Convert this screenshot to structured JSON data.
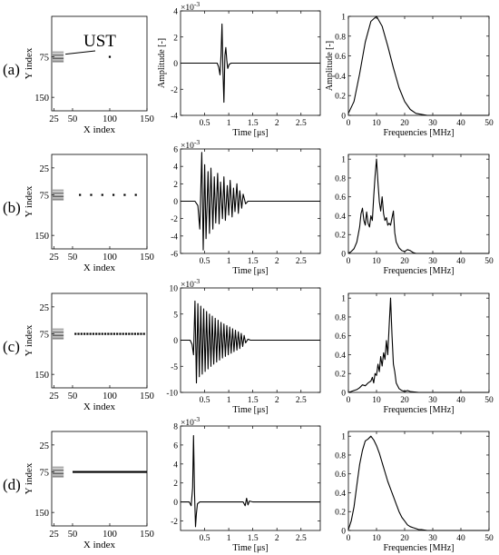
{
  "rows": [
    {
      "label": "(a)",
      "panel_type": "setup",
      "setup": {
        "x_ticks": [
          "25",
          "50",
          "100",
          "150"
        ],
        "y_ticks": [
          "75",
          "150"
        ],
        "xlabel": "X index",
        "ylabel": "Y index",
        "scatterers": [
          [
            100,
            75
          ]
        ],
        "continuous_line": false,
        "ust_label": "UST"
      },
      "time": {
        "exponent": "×10",
        "exponent_power": "-3",
        "ylabel": "Amplitude [-]",
        "xlabel": "Time [μs]",
        "x_ticks": [
          "0.5",
          "1",
          "1.5",
          "2",
          "2.5"
        ],
        "y_ticks": [
          "4",
          "2",
          "0",
          "-2",
          "-4"
        ]
      },
      "freq": {
        "ylabel": "Amplitude [-]",
        "xlabel": "Frequencies [MHz]",
        "x_ticks": [
          "0",
          "10",
          "20",
          "30",
          "40",
          "50"
        ],
        "y_ticks": [
          "1",
          "0.8",
          "0.6",
          "0.4",
          "0.2",
          "0"
        ]
      }
    },
    {
      "label": "(b)",
      "panel_type": "setup",
      "setup": {
        "x_ticks": [
          "25",
          "50",
          "100",
          "150"
        ],
        "y_ticks": [
          "25",
          "75",
          "150"
        ],
        "xlabel": "X index",
        "ylabel": "Y index",
        "scatterers": [
          [
            60,
            75
          ],
          [
            75,
            75
          ],
          [
            90,
            75
          ],
          [
            105,
            75
          ],
          [
            120,
            75
          ],
          [
            135,
            75
          ]
        ],
        "continuous_line": false
      },
      "time": {
        "exponent": "×10",
        "exponent_power": "-3",
        "ylabel": "",
        "xlabel": "Time [μs]",
        "x_ticks": [
          "0.5",
          "1",
          "1.5",
          "2",
          "2.5"
        ],
        "y_ticks": [
          "6",
          "4",
          "2",
          "0",
          "-2",
          "-4",
          "-6"
        ]
      },
      "freq": {
        "ylabel": "",
        "xlabel": "Frequencies [MHz]",
        "x_ticks": [
          "0",
          "10",
          "20",
          "30",
          "40",
          "50"
        ],
        "y_ticks": [
          "1",
          "0.8",
          "0.6",
          "0.4",
          "0.2",
          "0"
        ]
      }
    },
    {
      "label": "(c)",
      "panel_type": "setup",
      "setup": {
        "x_ticks": [
          "25",
          "50",
          "100",
          "150"
        ],
        "y_ticks": [
          "25",
          "75",
          "150"
        ],
        "xlabel": "X index",
        "ylabel": "Y index",
        "scatterers": [
          [
            54,
            75
          ],
          [
            58,
            75
          ],
          [
            62,
            75
          ],
          [
            66,
            75
          ],
          [
            70,
            75
          ],
          [
            74,
            75
          ],
          [
            78,
            75
          ],
          [
            82,
            75
          ],
          [
            86,
            75
          ],
          [
            90,
            75
          ],
          [
            94,
            75
          ],
          [
            98,
            75
          ],
          [
            102,
            75
          ],
          [
            106,
            75
          ],
          [
            110,
            75
          ],
          [
            114,
            75
          ],
          [
            118,
            75
          ],
          [
            122,
            75
          ],
          [
            126,
            75
          ],
          [
            130,
            75
          ],
          [
            134,
            75
          ],
          [
            138,
            75
          ],
          [
            142,
            75
          ],
          [
            146,
            75
          ]
        ],
        "continuous_line": false
      },
      "time": {
        "exponent": "×10",
        "exponent_power": "-3",
        "ylabel": "",
        "xlabel": "Time [μs]",
        "x_ticks": [
          "0.5",
          "1",
          "1.5",
          "2",
          "2.5"
        ],
        "y_ticks": [
          "10",
          "5",
          "0",
          "-5",
          "-10"
        ]
      },
      "freq": {
        "ylabel": "",
        "xlabel": "Frequencies [MHz]",
        "x_ticks": [
          "0",
          "10",
          "20",
          "30",
          "40",
          "50"
        ],
        "y_ticks": [
          "1",
          "0.8",
          "0.6",
          "0.4",
          "0.2",
          "0"
        ]
      }
    },
    {
      "label": "(d)",
      "panel_type": "setup",
      "setup": {
        "x_ticks": [
          "25",
          "50",
          "100",
          "150"
        ],
        "y_ticks": [
          "25",
          "75",
          "150"
        ],
        "xlabel": "X index",
        "ylabel": "Y index",
        "scatterers": [],
        "continuous_line": true
      },
      "time": {
        "exponent": "×10",
        "exponent_power": "-3",
        "ylabel": "",
        "xlabel": "Time [μs]",
        "x_ticks": [
          "0.5",
          "1",
          "1.5",
          "2",
          "2.5"
        ],
        "y_ticks": [
          "8",
          "6",
          "4",
          "2",
          "0",
          "-2"
        ]
      },
      "freq": {
        "ylabel": "",
        "xlabel": "Frequencies [MHz]",
        "x_ticks": [
          "0",
          "10",
          "20",
          "30",
          "40",
          "50"
        ],
        "y_ticks": [
          "1",
          "0.8",
          "0.6",
          "0.4",
          "0.2",
          "0"
        ]
      }
    }
  ],
  "chart_data": [
    {
      "type": "line",
      "row": "(a)",
      "xlabel": "Time [μs]",
      "ylabel": "Amplitude [-]",
      "xlim": [
        0,
        2.9
      ],
      "ylim": [
        -4,
        4
      ],
      "y_multiplier": "×10^-3",
      "x": [
        0.0,
        0.7,
        0.76,
        0.79,
        0.82,
        0.84,
        0.86,
        0.88,
        0.9,
        0.92,
        0.94,
        0.96,
        0.98,
        1.01,
        1.05,
        1.2,
        2.9
      ],
      "y": [
        0,
        0,
        0,
        -0.3,
        -0.9,
        0.6,
        3.0,
        -0.5,
        -3.0,
        0.6,
        1.2,
        0.2,
        -0.4,
        -0.1,
        0,
        0,
        0
      ]
    },
    {
      "type": "line",
      "row": "(a)",
      "xlabel": "Frequencies [MHz]",
      "ylabel": "Amplitude [-]",
      "xlim": [
        0,
        50
      ],
      "ylim": [
        0,
        1
      ],
      "x": [
        0,
        2,
        4,
        6,
        8,
        10,
        12,
        14,
        16,
        18,
        20,
        22,
        24,
        26,
        28,
        30,
        40,
        50
      ],
      "y": [
        0.02,
        0.14,
        0.42,
        0.74,
        0.95,
        1.0,
        0.9,
        0.7,
        0.48,
        0.28,
        0.14,
        0.06,
        0.02,
        0.01,
        0,
        0,
        0,
        0
      ]
    },
    {
      "type": "line",
      "row": "(b)",
      "xlabel": "Time [μs]",
      "xlim": [
        0,
        2.9
      ],
      "ylim": [
        -6,
        6
      ],
      "y_multiplier": "×10^-3",
      "x": [
        0.0,
        0.3,
        0.36,
        0.4,
        0.44,
        0.47,
        0.5,
        0.53,
        0.57,
        0.6,
        0.63,
        0.67,
        0.7,
        0.73,
        0.77,
        0.8,
        0.83,
        0.87,
        0.9,
        0.93,
        0.97,
        1.0,
        1.03,
        1.07,
        1.1,
        1.13,
        1.17,
        1.2,
        1.23,
        1.27,
        1.3,
        1.35,
        1.4,
        2.9
      ],
      "y": [
        0,
        0,
        -0.5,
        -3.2,
        5.6,
        -5.6,
        4.2,
        -4.3,
        3.4,
        -3.7,
        3.8,
        -3.2,
        2.8,
        -2.5,
        3.2,
        -2.6,
        2.2,
        -2.0,
        2.8,
        -2.2,
        1.8,
        -1.6,
        2.4,
        -1.8,
        1.5,
        -1.2,
        2.0,
        -1.4,
        1.2,
        -0.8,
        0.8,
        -0.3,
        0,
        0
      ]
    },
    {
      "type": "line",
      "row": "(b)",
      "xlabel": "Frequencies [MHz]",
      "xlim": [
        0,
        50
      ],
      "ylim": [
        0,
        1.05
      ],
      "x": [
        0,
        1,
        2,
        3,
        4,
        4.5,
        5,
        5.5,
        6,
        6.5,
        7,
        7.5,
        8,
        8.5,
        9,
        9.5,
        10,
        10.5,
        11,
        11.5,
        12,
        12.5,
        13,
        13.5,
        14,
        14.5,
        15,
        15.5,
        16,
        16.5,
        17,
        18,
        19,
        20,
        21,
        22,
        23,
        24,
        25,
        30,
        40,
        50
      ],
      "y": [
        0,
        0.02,
        0.05,
        0.12,
        0.28,
        0.42,
        0.48,
        0.35,
        0.3,
        0.44,
        0.32,
        0.28,
        0.4,
        0.35,
        0.6,
        0.82,
        1.0,
        0.75,
        0.55,
        0.45,
        0.6,
        0.42,
        0.35,
        0.38,
        0.3,
        0.32,
        0.3,
        0.38,
        0.45,
        0.22,
        0.12,
        0.06,
        0.03,
        0.02,
        0.04,
        0.03,
        0.01,
        0,
        0,
        0,
        0,
        0
      ]
    },
    {
      "type": "line",
      "row": "(c)",
      "xlabel": "Time [μs]",
      "xlim": [
        0,
        2.9
      ],
      "ylim": [
        -10,
        10
      ],
      "y_multiplier": "×10^-3",
      "x": [
        0.0,
        0.2,
        0.24,
        0.27,
        0.3,
        0.33,
        0.36,
        0.39,
        0.42,
        0.45,
        0.48,
        0.51,
        0.54,
        0.57,
        0.6,
        0.63,
        0.66,
        0.69,
        0.72,
        0.75,
        0.78,
        0.81,
        0.84,
        0.87,
        0.9,
        0.93,
        0.96,
        0.99,
        1.02,
        1.05,
        1.08,
        1.11,
        1.14,
        1.17,
        1.2,
        1.23,
        1.26,
        1.29,
        1.32,
        1.35,
        1.4,
        1.45,
        2.9
      ],
      "y": [
        0,
        0,
        -0.8,
        -2.8,
        7.5,
        -8.2,
        7.0,
        -7.0,
        6.5,
        -6.5,
        6.0,
        -6.0,
        5.5,
        -5.5,
        5.0,
        -5.0,
        4.6,
        -4.6,
        4.2,
        -4.2,
        3.8,
        -3.8,
        3.4,
        -3.4,
        3.1,
        -3.1,
        2.8,
        -2.8,
        2.5,
        -2.5,
        2.2,
        -2.2,
        1.9,
        -1.9,
        1.6,
        -1.6,
        1.3,
        -1.2,
        0.9,
        -0.5,
        0.2,
        0,
        0
      ]
    },
    {
      "type": "line",
      "row": "(c)",
      "xlabel": "Frequencies [MHz]",
      "xlim": [
        0,
        50
      ],
      "ylim": [
        0,
        1.05
      ],
      "x": [
        0,
        1,
        2,
        3,
        4,
        5,
        6,
        7,
        8,
        8.5,
        9,
        9.5,
        10,
        10.5,
        11,
        11.5,
        12,
        12.5,
        13,
        13.5,
        14,
        14.5,
        15,
        15.5,
        16,
        16.5,
        17,
        18,
        19,
        20,
        21,
        22,
        25,
        30,
        40,
        50
      ],
      "y": [
        0,
        0.01,
        0.02,
        0.03,
        0.05,
        0.08,
        0.07,
        0.1,
        0.12,
        0.16,
        0.1,
        0.2,
        0.18,
        0.3,
        0.22,
        0.38,
        0.28,
        0.42,
        0.35,
        0.55,
        0.4,
        0.7,
        1.0,
        0.6,
        0.3,
        0.22,
        0.1,
        0.04,
        0.02,
        0.01,
        0.02,
        0.01,
        0,
        0,
        0,
        0
      ]
    },
    {
      "type": "line",
      "row": "(d)",
      "xlabel": "Time [μs]",
      "xlim": [
        0,
        2.9
      ],
      "ylim": [
        -3,
        8
      ],
      "y_multiplier": "×10^-3",
      "x": [
        0.0,
        0.18,
        0.22,
        0.25,
        0.27,
        0.29,
        0.31,
        0.33,
        0.35,
        0.4,
        1.3,
        1.34,
        1.37,
        1.4,
        1.43,
        1.5,
        2.9
      ],
      "y": [
        0,
        0,
        -0.4,
        1.5,
        7.0,
        1.0,
        -2.6,
        -1.2,
        -0.2,
        0,
        0,
        -0.4,
        0.4,
        -0.3,
        0.1,
        0,
        0
      ]
    },
    {
      "type": "line",
      "row": "(d)",
      "xlabel": "Frequencies [MHz]",
      "xlim": [
        0,
        50
      ],
      "ylim": [
        0,
        1.05
      ],
      "x": [
        0,
        1,
        2,
        3,
        4,
        5,
        6,
        7,
        8,
        9,
        10,
        11,
        12,
        13,
        14,
        15,
        16,
        17,
        18,
        19,
        20,
        21,
        22,
        23,
        24,
        25,
        26,
        28,
        30,
        35,
        40,
        50
      ],
      "y": [
        0.01,
        0.1,
        0.25,
        0.48,
        0.7,
        0.85,
        0.95,
        0.97,
        1.0,
        0.96,
        0.9,
        0.82,
        0.72,
        0.62,
        0.52,
        0.44,
        0.36,
        0.28,
        0.2,
        0.14,
        0.1,
        0.06,
        0.04,
        0.03,
        0.02,
        0.01,
        0.01,
        0,
        0,
        0,
        0,
        0
      ]
    }
  ]
}
